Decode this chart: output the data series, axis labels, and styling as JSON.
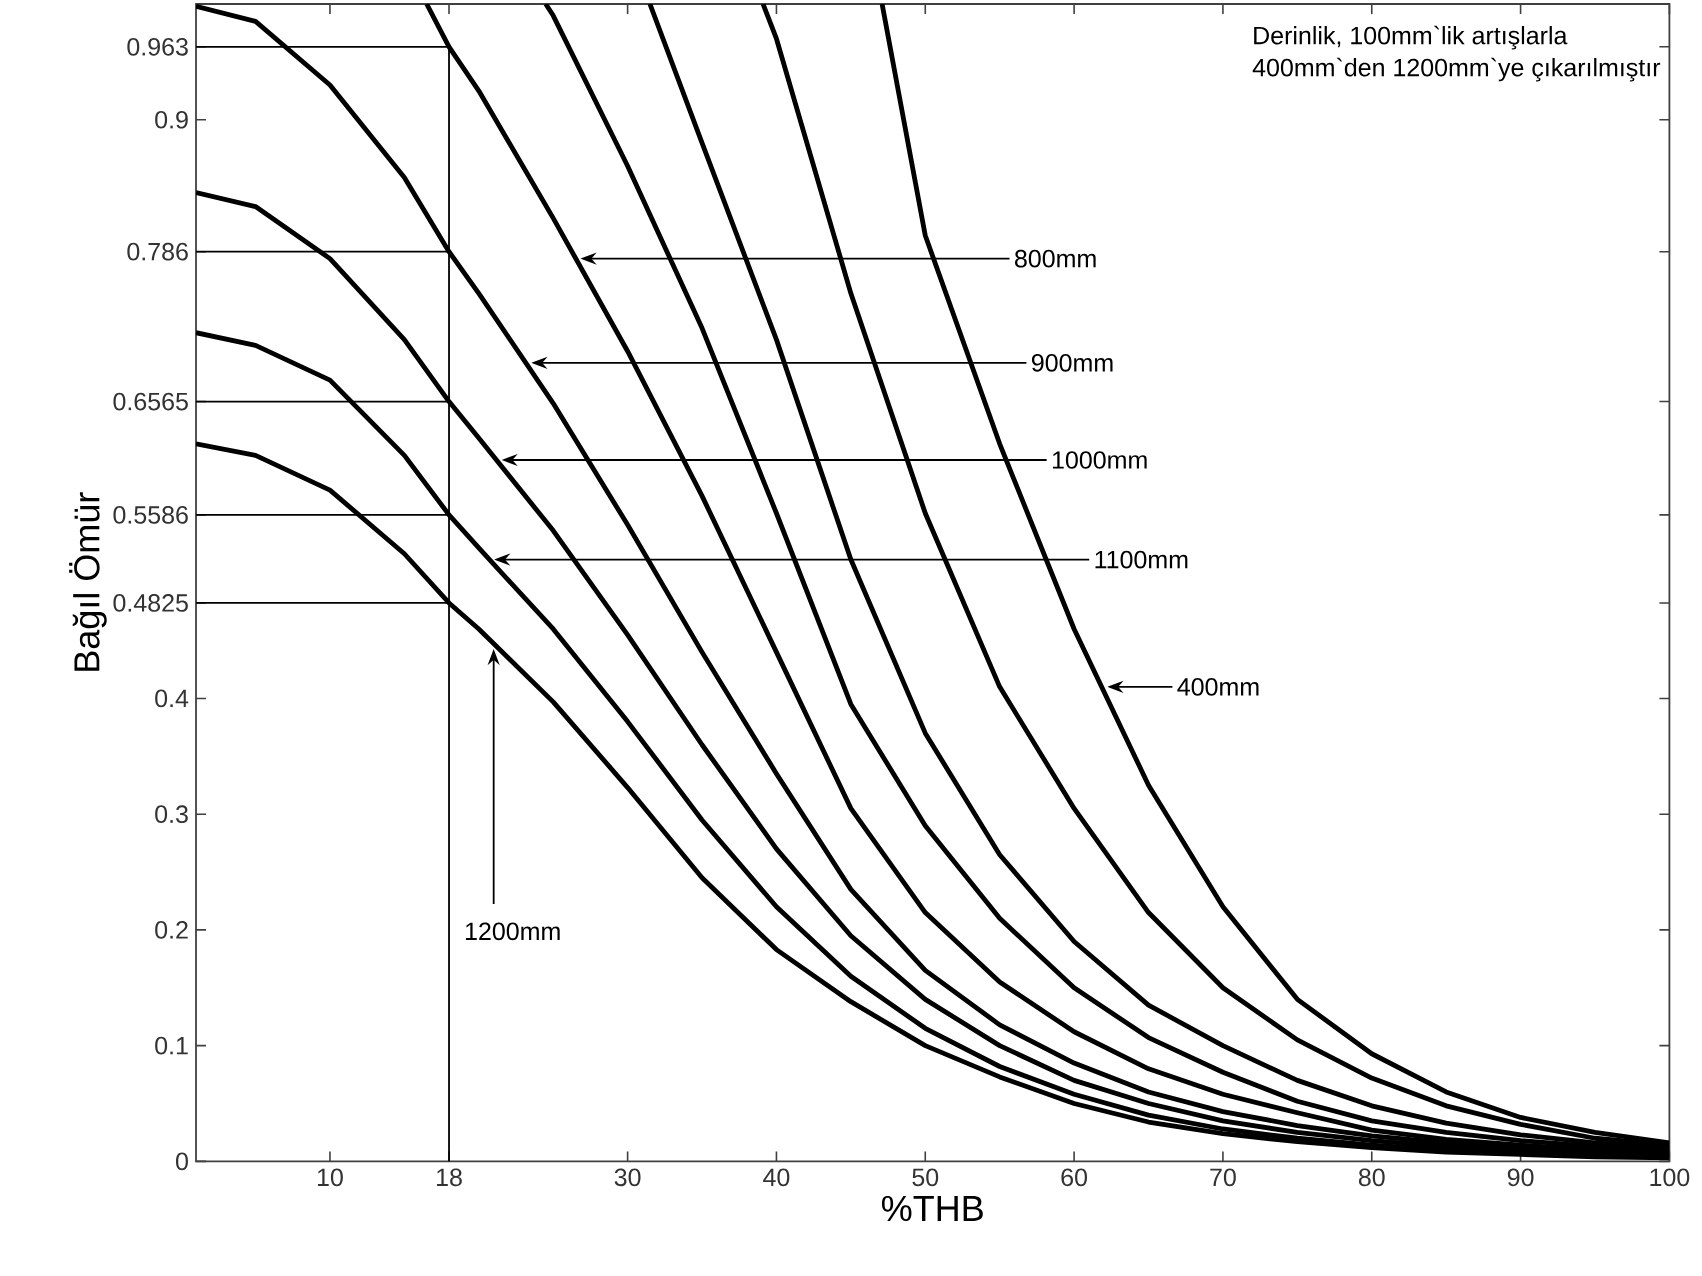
{
  "chart_data": {
    "type": "line",
    "xlabel": "%THB",
    "ylabel": "Bağıl Ömür",
    "xlim": [
      1,
      100
    ],
    "ylim": [
      0,
      1
    ],
    "xticks": [
      10,
      18,
      30,
      40,
      50,
      60,
      70,
      80,
      90,
      100
    ],
    "yticks": [
      0,
      0.1,
      0.2,
      0.3,
      0.4,
      0.4825,
      0.5586,
      0.6565,
      0.786,
      0.9,
      0.963
    ],
    "marker": "none",
    "series": [
      {
        "color": "#000000",
        "x": [
          47.1,
          50,
          55,
          60,
          65,
          70,
          75,
          80,
          85,
          90,
          95,
          100
        ],
        "values": [
          1.0,
          0.8,
          0.62,
          0.46,
          0.325,
          0.22,
          0.14,
          0.093,
          0.06,
          0.038,
          0.025,
          0.016
        ]
      },
      {
        "color": "#000000",
        "x": [
          39.1,
          40,
          45,
          50,
          55,
          60,
          65,
          70,
          75,
          80,
          85,
          90,
          95,
          100
        ],
        "values": [
          1.0,
          0.97,
          0.75,
          0.56,
          0.41,
          0.305,
          0.215,
          0.15,
          0.105,
          0.072,
          0.048,
          0.032,
          0.02,
          0.014
        ]
      },
      {
        "color": "#000000",
        "x": [
          31.5,
          35,
          40,
          45,
          50,
          55,
          60,
          65,
          70,
          75,
          80,
          85,
          90,
          95,
          100
        ],
        "values": [
          1.0,
          0.88,
          0.71,
          0.52,
          0.37,
          0.265,
          0.19,
          0.135,
          0.1,
          0.07,
          0.048,
          0.033,
          0.023,
          0.016,
          0.012
        ]
      },
      {
        "color": "#000000",
        "x": [
          24.5,
          25,
          30,
          35,
          40,
          45,
          50,
          55,
          60,
          65,
          70,
          75,
          80,
          85,
          90,
          95,
          100
        ],
        "values": [
          1.0,
          0.99,
          0.86,
          0.72,
          0.56,
          0.395,
          0.29,
          0.21,
          0.15,
          0.107,
          0.077,
          0.052,
          0.035,
          0.025,
          0.018,
          0.013,
          0.01
        ]
      },
      {
        "color": "#000000",
        "x": [
          16.5,
          18,
          20,
          25,
          30,
          35,
          40,
          45,
          50,
          55,
          60,
          65,
          70,
          75,
          80,
          85,
          90,
          95,
          100
        ],
        "values": [
          1.0,
          0.963,
          0.925,
          0.815,
          0.7,
          0.575,
          0.44,
          0.305,
          0.215,
          0.155,
          0.112,
          0.08,
          0.058,
          0.042,
          0.027,
          0.019,
          0.014,
          0.01,
          0.008
        ]
      },
      {
        "color": "#000000",
        "x": [
          1,
          5,
          10,
          15,
          18,
          20,
          25,
          30,
          35,
          40,
          45,
          50,
          55,
          60,
          65,
          70,
          75,
          80,
          85,
          90,
          95,
          100
        ],
        "values": [
          0.998,
          0.985,
          0.93,
          0.85,
          0.786,
          0.75,
          0.655,
          0.55,
          0.44,
          0.335,
          0.235,
          0.165,
          0.118,
          0.085,
          0.06,
          0.043,
          0.031,
          0.022,
          0.016,
          0.012,
          0.009,
          0.007
        ]
      },
      {
        "color": "#000000",
        "x": [
          1,
          5,
          10,
          15,
          18,
          20,
          25,
          30,
          35,
          40,
          45,
          50,
          55,
          60,
          65,
          70,
          75,
          80,
          85,
          90,
          95,
          100
        ],
        "values": [
          0.837,
          0.825,
          0.78,
          0.71,
          0.6565,
          0.625,
          0.545,
          0.455,
          0.36,
          0.27,
          0.195,
          0.14,
          0.1,
          0.07,
          0.05,
          0.035,
          0.025,
          0.018,
          0.013,
          0.009,
          0.007,
          0.005
        ]
      },
      {
        "color": "#000000",
        "x": [
          1,
          5,
          10,
          15,
          18,
          20,
          25,
          30,
          35,
          40,
          45,
          50,
          55,
          60,
          65,
          70,
          75,
          80,
          85,
          90,
          95,
          100
        ],
        "values": [
          0.716,
          0.705,
          0.675,
          0.61,
          0.5586,
          0.53,
          0.46,
          0.38,
          0.295,
          0.22,
          0.16,
          0.115,
          0.082,
          0.058,
          0.04,
          0.028,
          0.02,
          0.014,
          0.01,
          0.007,
          0.005,
          0.004
        ]
      },
      {
        "color": "#000000",
        "x": [
          1,
          5,
          10,
          15,
          18,
          20,
          25,
          30,
          35,
          40,
          45,
          50,
          55,
          60,
          65,
          70,
          75,
          80,
          85,
          90,
          95,
          100
        ],
        "values": [
          0.62,
          0.61,
          0.58,
          0.525,
          0.4825,
          0.46,
          0.397,
          0.323,
          0.245,
          0.183,
          0.138,
          0.1,
          0.073,
          0.05,
          0.034,
          0.024,
          0.017,
          0.012,
          0.008,
          0.006,
          0.004,
          0.003
        ]
      }
    ],
    "ref_lines": [
      {
        "axis": "x",
        "value": 18
      },
      {
        "axis": "y",
        "value": 0.963
      },
      {
        "axis": "y",
        "value": 0.786
      },
      {
        "axis": "y",
        "value": 0.6565
      },
      {
        "axis": "y",
        "value": 0.5586
      },
      {
        "axis": "y",
        "value": 0.4825
      }
    ],
    "annotations": [
      "Derinlik, 100mm`lik artışlarla",
      "400mm`den 1200mm`ye çıkarılmıştır",
      {
        "text": "800mm",
        "x": 26.5,
        "y": 0.78
      },
      {
        "text": "900mm",
        "x": 23.2,
        "y": 0.69
      },
      {
        "text": "1000mm",
        "x": 21.2,
        "y": 0.606
      },
      {
        "text": "1100mm",
        "x": 20.7,
        "y": 0.52
      },
      {
        "text": "400mm",
        "x": 61.9,
        "y": 0.41
      },
      {
        "text": "1200mm",
        "x": 21,
        "y": 0.447
      }
    ]
  }
}
